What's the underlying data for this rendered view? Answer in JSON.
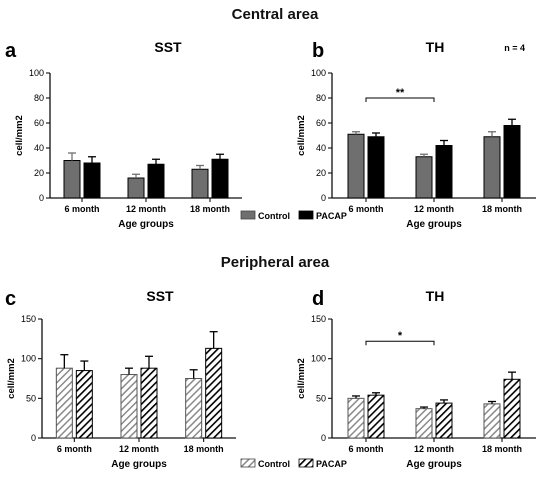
{
  "sections": {
    "central_title": "Central area",
    "peripheral_title": "Peripheral area"
  },
  "annotation_n": "n = 4",
  "legend": {
    "control_label": "Control",
    "pacap_label": "PACAP"
  },
  "colors": {
    "control": "#6f6f6f",
    "pacap": "#000000",
    "axis": "#111111"
  },
  "chart_data": [
    {
      "panel": "a",
      "type": "bar",
      "title": "SST",
      "xlabel": "Age groups",
      "ylabel": "cell/mm2",
      "ylim": [
        0,
        100
      ],
      "yticks": [
        0,
        20,
        40,
        60,
        80,
        100
      ],
      "categories": [
        "6 month",
        "12 month",
        "18 month"
      ],
      "style": "solid",
      "series": [
        {
          "name": "Control",
          "values": [
            30,
            16,
            23
          ],
          "errors": [
            6,
            3,
            3
          ]
        },
        {
          "name": "PACAP",
          "values": [
            28,
            27,
            31
          ],
          "errors": [
            5,
            4,
            4
          ]
        }
      ],
      "significance": []
    },
    {
      "panel": "b",
      "type": "bar",
      "title": "TH",
      "xlabel": "Age groups",
      "ylabel": "cell/mm2",
      "ylim": [
        0,
        100
      ],
      "yticks": [
        0,
        20,
        40,
        60,
        80,
        100
      ],
      "categories": [
        "6 month",
        "12 month",
        "18 month"
      ],
      "style": "solid",
      "series": [
        {
          "name": "Control",
          "values": [
            51,
            33,
            49
          ],
          "errors": [
            2,
            2,
            4
          ]
        },
        {
          "name": "PACAP",
          "values": [
            49,
            42,
            58
          ],
          "errors": [
            3,
            4,
            5
          ]
        }
      ],
      "significance": [
        {
          "from": 0,
          "to": 1,
          "y": 80,
          "label": "**"
        }
      ]
    },
    {
      "panel": "c",
      "type": "bar",
      "title": "SST",
      "xlabel": "Age groups",
      "ylabel": "cell/mm2",
      "ylim": [
        0,
        150
      ],
      "yticks": [
        0,
        50,
        100,
        150
      ],
      "categories": [
        "6 month",
        "12 month",
        "18 month"
      ],
      "style": "hatched",
      "series": [
        {
          "name": "Control",
          "values": [
            88,
            80,
            75
          ],
          "errors": [
            17,
            8,
            11
          ]
        },
        {
          "name": "PACAP",
          "values": [
            85,
            88,
            113
          ],
          "errors": [
            12,
            15,
            21
          ]
        }
      ],
      "significance": []
    },
    {
      "panel": "d",
      "type": "bar",
      "title": "TH",
      "xlabel": "Age groups",
      "ylabel": "cell/mm2",
      "ylim": [
        0,
        150
      ],
      "yticks": [
        0,
        50,
        100,
        150
      ],
      "categories": [
        "6 month",
        "12 month",
        "18 month"
      ],
      "style": "hatched",
      "series": [
        {
          "name": "Control",
          "values": [
            50,
            37,
            43
          ],
          "errors": [
            3,
            2,
            3
          ]
        },
        {
          "name": "PACAP",
          "values": [
            54,
            44,
            74
          ],
          "errors": [
            3,
            4,
            9
          ]
        }
      ],
      "significance": [
        {
          "from": 0,
          "to": 1,
          "y": 122,
          "label": "*"
        }
      ]
    }
  ]
}
